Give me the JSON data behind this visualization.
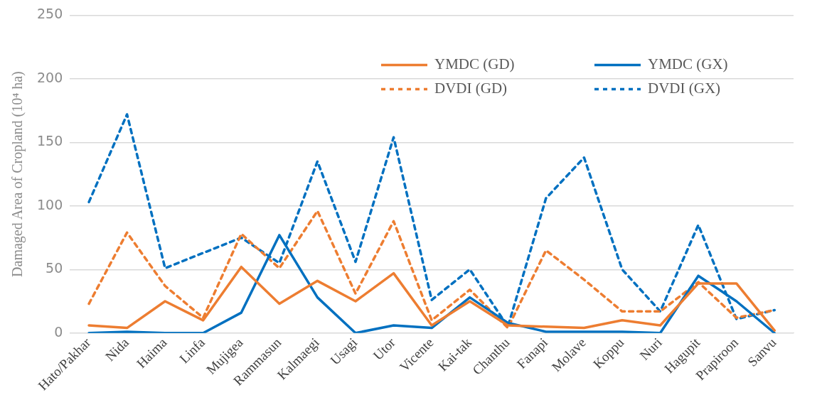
{
  "chart_data": {
    "type": "line",
    "ylabel": "Damaged Area of Cropland (10⁴ ha)",
    "categories": [
      "Hato/Pakhar",
      "Nida",
      "Haima",
      "Linfa",
      "Mujigea",
      "Rammasun",
      "Kalmaegi",
      "Usagi",
      "Utor",
      "Vicente",
      "Kai-tak",
      "Chanthu",
      "Fanapi",
      "Molave",
      "Koppu",
      "Nuri",
      "Hagupit",
      "Prapiroon",
      "Sanvu"
    ],
    "series": [
      {
        "name": "YMDC (GD)",
        "color": "#ed7d31",
        "line_style": "solid",
        "values": [
          6,
          4,
          25,
          10,
          52,
          23,
          41,
          25,
          47,
          6,
          25,
          6,
          5,
          4,
          10,
          6,
          39,
          39,
          2
        ]
      },
      {
        "name": "YMDC (GX)",
        "color": "#0070c0",
        "line_style": "solid",
        "values": [
          0,
          1,
          0,
          0,
          16,
          77,
          28,
          0,
          6,
          4,
          28,
          8,
          1,
          1,
          1,
          0,
          45,
          25,
          0
        ]
      },
      {
        "name": "DVDI (GD)",
        "color": "#ed7d31",
        "line_style": "dashed",
        "values": [
          23,
          79,
          37,
          12,
          78,
          51,
          96,
          31,
          88,
          10,
          34,
          4,
          65,
          42,
          17,
          17,
          40,
          12,
          18
        ]
      },
      {
        "name": "DVDI (GX)",
        "color": "#0070c0",
        "line_style": "dashed",
        "values": [
          103,
          172,
          51,
          63,
          75,
          55,
          135,
          56,
          154,
          26,
          50,
          5,
          106,
          138,
          50,
          17,
          85,
          11,
          18
        ]
      }
    ],
    "ylim": [
      0,
      250
    ],
    "yticks": [
      0,
      50,
      100,
      150,
      200,
      250
    ],
    "grid": "y",
    "legend": "top right",
    "marker": "none"
  }
}
